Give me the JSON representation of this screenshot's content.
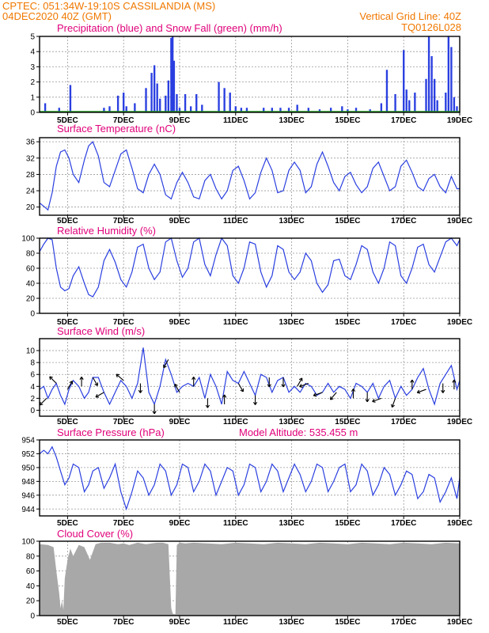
{
  "header": {
    "line1_left": "CPTEC:   051:34W-19:10S   CASSILANDIA (MS)",
    "line2_left": "04DEC2020 40Z (GMT)",
    "line2_right": "Vertical Grid Line: 40Z",
    "line3_right": "TQ0126L028"
  },
  "colors": {
    "header": "#f07800",
    "panel_title": "#e0007a",
    "series_line": "#2a3fe0",
    "precip_bars": "#2a3fe0",
    "snow_line": "#22a022",
    "cloud_fill": "#a8a8a8",
    "arrows": "#000000"
  },
  "x_tick_labels": [
    "5DEC",
    "7DEC",
    "9DEC",
    "11DEC",
    "13DEC",
    "15DEC",
    "17DEC",
    "19DEC"
  ],
  "chart_data": [
    {
      "id": "precip",
      "type": "bar",
      "title": "Precipitation (blue) and Snow Fall (green) (mm/h)",
      "ylim": [
        0,
        5
      ],
      "yticks": [
        0,
        1,
        2,
        3,
        4,
        5
      ],
      "xlim_days": [
        4.0,
        19.0
      ],
      "grid": true,
      "x": [
        4.2,
        4.7,
        5.1,
        6.3,
        6.5,
        6.8,
        7.0,
        7.1,
        7.4,
        7.8,
        8.0,
        8.1,
        8.2,
        8.3,
        8.5,
        8.6,
        8.7,
        8.75,
        8.8,
        8.9,
        9.0,
        9.2,
        9.4,
        9.6,
        9.8,
        10.4,
        10.6,
        10.8,
        11.0,
        11.2,
        11.4,
        12.0,
        12.3,
        12.6,
        12.9,
        13.2,
        13.6,
        14.0,
        14.4,
        14.8,
        15.0,
        15.3,
        15.8,
        16.2,
        16.4,
        16.7,
        17.0,
        17.1,
        17.2,
        17.4,
        17.8,
        17.9,
        18.0,
        18.1,
        18.2,
        18.5,
        18.6,
        18.7,
        18.8,
        18.9
      ],
      "values": [
        0.6,
        0.3,
        1.8,
        0.3,
        0.4,
        1.1,
        1.3,
        0.4,
        0.6,
        1.6,
        2.6,
        3.1,
        1.9,
        0.9,
        1.1,
        2.1,
        4.9,
        5.0,
        3.4,
        1.2,
        0.3,
        1.2,
        0.4,
        1.2,
        0.5,
        2.0,
        1.6,
        1.3,
        0.4,
        0.3,
        0.3,
        0.3,
        0.3,
        0.3,
        0.3,
        0.5,
        0.3,
        0.2,
        0.3,
        0.4,
        0.2,
        0.3,
        0.2,
        0.6,
        2.8,
        1.2,
        4.1,
        1.5,
        0.8,
        1.3,
        2.2,
        5.0,
        3.7,
        2.2,
        0.8,
        1.3,
        5.0,
        4.3,
        1.0,
        0.4
      ],
      "snow": "0.0 throughout (green line along zero)"
    },
    {
      "id": "temp",
      "type": "line",
      "title": "Surface Temperature (nC)",
      "ylim": [
        18,
        37
      ],
      "yticks": [
        20,
        24,
        28,
        32,
        36
      ],
      "xlim_days": [
        4.0,
        19.0
      ],
      "grid": true,
      "x": [
        4.0,
        4.15,
        4.3,
        4.45,
        4.6,
        4.75,
        4.9,
        5.05,
        5.2,
        5.4,
        5.6,
        5.75,
        5.9,
        6.1,
        6.3,
        6.5,
        6.7,
        6.9,
        7.1,
        7.3,
        7.5,
        7.7,
        7.9,
        8.1,
        8.3,
        8.5,
        8.7,
        8.9,
        9.1,
        9.3,
        9.5,
        9.7,
        9.9,
        10.1,
        10.3,
        10.5,
        10.7,
        10.9,
        11.1,
        11.3,
        11.5,
        11.7,
        11.9,
        12.1,
        12.3,
        12.5,
        12.7,
        12.9,
        13.1,
        13.3,
        13.5,
        13.7,
        13.9,
        14.1,
        14.3,
        14.5,
        14.7,
        14.9,
        15.1,
        15.3,
        15.5,
        15.7,
        15.9,
        16.1,
        16.3,
        16.5,
        16.7,
        16.9,
        17.1,
        17.3,
        17.5,
        17.7,
        17.9,
        18.1,
        18.3,
        18.5,
        18.7,
        18.9,
        19.0
      ],
      "values": [
        21.0,
        20.2,
        19.3,
        23.5,
        30.0,
        33.5,
        34.0,
        32.0,
        28.0,
        26.0,
        31.5,
        35.0,
        36.0,
        32.5,
        26.0,
        25.0,
        29.0,
        33.0,
        34.0,
        29.5,
        24.5,
        23.5,
        28.0,
        30.5,
        28.0,
        23.0,
        22.0,
        26.0,
        28.5,
        26.0,
        22.5,
        22.0,
        26.5,
        28.0,
        24.5,
        22.0,
        24.0,
        29.0,
        30.0,
        26.5,
        22.0,
        23.5,
        28.5,
        32.0,
        29.0,
        23.5,
        24.0,
        29.0,
        31.0,
        29.0,
        23.5,
        25.0,
        30.5,
        33.5,
        30.0,
        26.0,
        24.0,
        27.5,
        28.5,
        25.5,
        23.5,
        25.0,
        29.5,
        31.0,
        27.5,
        24.0,
        25.0,
        30.0,
        31.5,
        28.5,
        25.0,
        24.0,
        27.0,
        28.0,
        25.0,
        23.5,
        27.5,
        24.5,
        24.5
      ]
    },
    {
      "id": "rh",
      "type": "line",
      "title": "Relative Humidity (%)",
      "ylim": [
        0,
        100
      ],
      "yticks": [
        0,
        20,
        40,
        60,
        80,
        100
      ],
      "xlim_days": [
        4.0,
        19.0
      ],
      "grid": true,
      "x": [
        4.0,
        4.15,
        4.3,
        4.45,
        4.6,
        4.75,
        4.9,
        5.05,
        5.2,
        5.4,
        5.6,
        5.75,
        5.9,
        6.1,
        6.3,
        6.5,
        6.7,
        6.9,
        7.1,
        7.3,
        7.5,
        7.7,
        7.9,
        8.1,
        8.3,
        8.5,
        8.7,
        8.9,
        9.1,
        9.3,
        9.5,
        9.7,
        9.9,
        10.1,
        10.3,
        10.5,
        10.7,
        10.9,
        11.1,
        11.3,
        11.5,
        11.7,
        11.9,
        12.1,
        12.3,
        12.5,
        12.7,
        12.9,
        13.1,
        13.3,
        13.5,
        13.7,
        13.9,
        14.1,
        14.3,
        14.5,
        14.7,
        14.9,
        15.1,
        15.3,
        15.5,
        15.7,
        15.9,
        16.1,
        16.3,
        16.5,
        16.7,
        16.9,
        17.1,
        17.3,
        17.5,
        17.7,
        17.9,
        18.1,
        18.3,
        18.5,
        18.7,
        18.9,
        19.0
      ],
      "values": [
        82,
        92,
        100,
        98,
        60,
        35,
        30,
        33,
        50,
        62,
        40,
        25,
        22,
        35,
        70,
        85,
        68,
        45,
        35,
        55,
        88,
        92,
        60,
        45,
        55,
        95,
        100,
        70,
        48,
        60,
        95,
        100,
        65,
        50,
        78,
        100,
        90,
        50,
        40,
        60,
        95,
        92,
        55,
        35,
        50,
        90,
        85,
        55,
        45,
        55,
        80,
        70,
        40,
        28,
        38,
        70,
        72,
        50,
        45,
        65,
        90,
        85,
        55,
        40,
        60,
        95,
        90,
        50,
        40,
        60,
        88,
        92,
        65,
        55,
        75,
        95,
        100,
        90,
        98
      ]
    },
    {
      "id": "wind",
      "type": "line",
      "title": "Surface Wind (m/s)",
      "ylim": [
        -1,
        12
      ],
      "yticks": [
        0,
        2,
        4,
        6,
        8,
        10
      ],
      "xlim_days": [
        4.0,
        19.0
      ],
      "grid": true,
      "x": [
        4.0,
        4.15,
        4.3,
        4.45,
        4.6,
        4.75,
        4.9,
        5.05,
        5.2,
        5.4,
        5.6,
        5.75,
        5.9,
        6.1,
        6.3,
        6.5,
        6.7,
        6.9,
        7.1,
        7.3,
        7.5,
        7.7,
        7.9,
        8.1,
        8.3,
        8.5,
        8.7,
        8.9,
        9.1,
        9.3,
        9.5,
        9.7,
        9.9,
        10.1,
        10.3,
        10.5,
        10.7,
        10.9,
        11.1,
        11.3,
        11.5,
        11.7,
        11.9,
        12.1,
        12.3,
        12.5,
        12.7,
        12.9,
        13.1,
        13.3,
        13.5,
        13.7,
        13.9,
        14.1,
        14.3,
        14.5,
        14.7,
        14.9,
        15.1,
        15.3,
        15.5,
        15.7,
        15.9,
        16.1,
        16.3,
        16.5,
        16.7,
        16.9,
        17.1,
        17.3,
        17.5,
        17.7,
        17.9,
        18.1,
        18.3,
        18.5,
        18.7,
        18.9,
        19.0
      ],
      "values": [
        3.5,
        4.0,
        2.0,
        3.5,
        4.5,
        2.5,
        1.0,
        3.5,
        5.0,
        4.0,
        2.0,
        3.0,
        5.5,
        5.5,
        3.0,
        1.0,
        3.0,
        5.0,
        4.0,
        2.0,
        4.5,
        10.5,
        3.0,
        1.0,
        4.0,
        8.5,
        6.0,
        3.0,
        4.0,
        4.5,
        4.0,
        5.5,
        2.0,
        6.0,
        4.0,
        1.0,
        6.5,
        5.0,
        4.5,
        6.5,
        4.5,
        2.5,
        6.0,
        5.5,
        3.0,
        5.0,
        5.5,
        3.0,
        4.0,
        3.0,
        4.5,
        4.0,
        2.5,
        3.0,
        4.5,
        3.0,
        4.0,
        3.5,
        2.0,
        4.5,
        4.0,
        3.0,
        4.5,
        2.0,
        4.0,
        5.0,
        2.0,
        4.0,
        2.5,
        3.5,
        5.5,
        7.0,
        3.5,
        1.0,
        4.5,
        6.0,
        7.5,
        3.5,
        5.0
      ],
      "vectors_note": "wind direction arrows drawn along the speed curve"
    },
    {
      "id": "pressure",
      "type": "line",
      "title": "Surface Pressure (hPa)",
      "annotation": "Model Altitude: 535.455  m",
      "ylim": [
        943,
        954
      ],
      "yticks": [
        944,
        946,
        948,
        950,
        952,
        954
      ],
      "xlim_days": [
        4.0,
        19.0
      ],
      "grid": true,
      "x": [
        4.0,
        4.15,
        4.3,
        4.45,
        4.6,
        4.75,
        4.9,
        5.05,
        5.2,
        5.4,
        5.6,
        5.75,
        5.9,
        6.1,
        6.3,
        6.5,
        6.7,
        6.9,
        7.1,
        7.3,
        7.5,
        7.7,
        7.9,
        8.1,
        8.3,
        8.5,
        8.7,
        8.9,
        9.1,
        9.3,
        9.5,
        9.7,
        9.9,
        10.1,
        10.3,
        10.5,
        10.7,
        10.9,
        11.1,
        11.3,
        11.5,
        11.7,
        11.9,
        12.1,
        12.3,
        12.5,
        12.7,
        12.9,
        13.1,
        13.3,
        13.5,
        13.7,
        13.9,
        14.1,
        14.3,
        14.5,
        14.7,
        14.9,
        15.1,
        15.3,
        15.5,
        15.7,
        15.9,
        16.1,
        16.3,
        16.5,
        16.7,
        16.9,
        17.1,
        17.3,
        17.5,
        17.7,
        17.9,
        18.1,
        18.3,
        18.5,
        18.7,
        18.9,
        19.0
      ],
      "values": [
        952.0,
        952.5,
        952.0,
        953.0,
        951.5,
        949.5,
        947.5,
        948.5,
        950.5,
        950.0,
        946.5,
        947.5,
        949.5,
        950.0,
        947.0,
        948.5,
        950.5,
        946.5,
        944.0,
        946.5,
        949.5,
        948.5,
        946.0,
        947.5,
        950.5,
        949.5,
        946.0,
        947.5,
        950.5,
        950.0,
        946.5,
        948.0,
        950.5,
        949.5,
        946.0,
        948.0,
        950.0,
        949.5,
        946.0,
        947.5,
        950.5,
        950.0,
        946.5,
        948.0,
        950.5,
        949.5,
        946.5,
        948.5,
        950.5,
        949.0,
        946.5,
        948.0,
        950.5,
        950.0,
        946.5,
        948.0,
        950.0,
        950.5,
        946.5,
        947.5,
        950.5,
        949.5,
        946.0,
        947.5,
        950.0,
        949.0,
        946.0,
        947.5,
        949.5,
        949.0,
        945.5,
        946.5,
        949.0,
        948.5,
        945.0,
        946.5,
        948.5,
        945.5,
        948.5
      ]
    },
    {
      "id": "cloud",
      "type": "area",
      "title": "Cloud Cover (%)",
      "ylim": [
        0,
        100
      ],
      "yticks": [
        0,
        20,
        40,
        60,
        80,
        100
      ],
      "xlim_days": [
        4.0,
        19.0
      ],
      "grid": true,
      "x": [
        4.0,
        4.3,
        4.5,
        4.6,
        4.7,
        4.75,
        4.8,
        4.85,
        4.9,
        5.0,
        5.1,
        5.2,
        5.4,
        5.6,
        5.8,
        6.0,
        6.2,
        6.5,
        6.8,
        7.0,
        7.2,
        7.5,
        7.8,
        8.0,
        8.2,
        8.4,
        8.6,
        8.7,
        8.75,
        8.8,
        8.85,
        8.9,
        9.0,
        9.2,
        9.5,
        10.0,
        10.5,
        11.0,
        11.5,
        12.0,
        12.5,
        13.0,
        13.5,
        14.0,
        14.5,
        15.0,
        15.5,
        16.0,
        16.5,
        17.0,
        17.5,
        18.0,
        18.5,
        19.0
      ],
      "values": [
        96,
        95,
        92,
        60,
        30,
        10,
        20,
        8,
        50,
        75,
        90,
        80,
        95,
        92,
        75,
        96,
        98,
        98,
        96,
        97,
        95,
        98,
        96,
        97,
        98,
        98,
        96,
        10,
        3,
        2,
        2,
        95,
        98,
        97,
        98,
        97,
        96,
        98,
        97,
        96,
        98,
        97,
        96,
        98,
        97,
        96,
        98,
        97,
        96,
        98,
        97,
        96,
        98,
        97
      ]
    }
  ]
}
